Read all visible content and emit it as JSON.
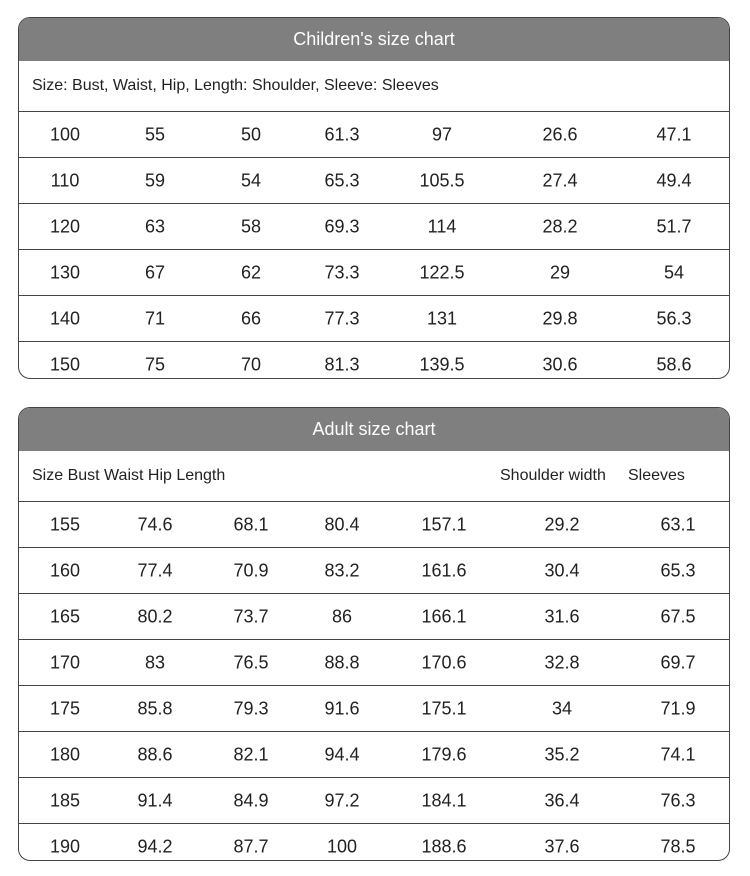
{
  "children": {
    "title": "Children's size chart",
    "subtitle": "Size: Bust, Waist, Hip, Length: Shoulder, Sleeve: Sleeves",
    "rows": [
      [
        "100",
        "55",
        "50",
        "61.3",
        "97",
        "26.6",
        "47.1"
      ],
      [
        "110",
        "59",
        "54",
        "65.3",
        "105.5",
        "27.4",
        "49.4"
      ],
      [
        "120",
        "63",
        "58",
        "69.3",
        "114",
        "28.2",
        "51.7"
      ],
      [
        "130",
        "67",
        "62",
        "73.3",
        "122.5",
        "29",
        "54"
      ],
      [
        "140",
        "71",
        "66",
        "77.3",
        "131",
        "29.8",
        "56.3"
      ],
      [
        "150",
        "75",
        "70",
        "81.3",
        "139.5",
        "30.6",
        "58.6"
      ]
    ]
  },
  "adult": {
    "title": "Adult size chart",
    "header": [
      "Size Bust Waist Hip Length",
      "Shoulder width",
      "Sleeves"
    ],
    "rows": [
      [
        "155",
        "74.6",
        "68.1",
        "80.4",
        "157.1",
        "29.2",
        "63.1"
      ],
      [
        "160",
        "77.4",
        "70.9",
        "83.2",
        "161.6",
        "30.4",
        "65.3"
      ],
      [
        "165",
        "80.2",
        "73.7",
        "86",
        "166.1",
        "31.6",
        "67.5"
      ],
      [
        "170",
        "83",
        "76.5",
        "88.8",
        "170.6",
        "32.8",
        "69.7"
      ],
      [
        "175",
        "85.8",
        "79.3",
        "91.6",
        "175.1",
        "34",
        "71.9"
      ],
      [
        "180",
        "88.6",
        "82.1",
        "94.4",
        "179.6",
        "35.2",
        "74.1"
      ],
      [
        "185",
        "91.4",
        "84.9",
        "97.2",
        "184.1",
        "36.4",
        "76.3"
      ],
      [
        "190",
        "94.2",
        "87.7",
        "100",
        "188.6",
        "37.6",
        "78.5"
      ]
    ]
  }
}
